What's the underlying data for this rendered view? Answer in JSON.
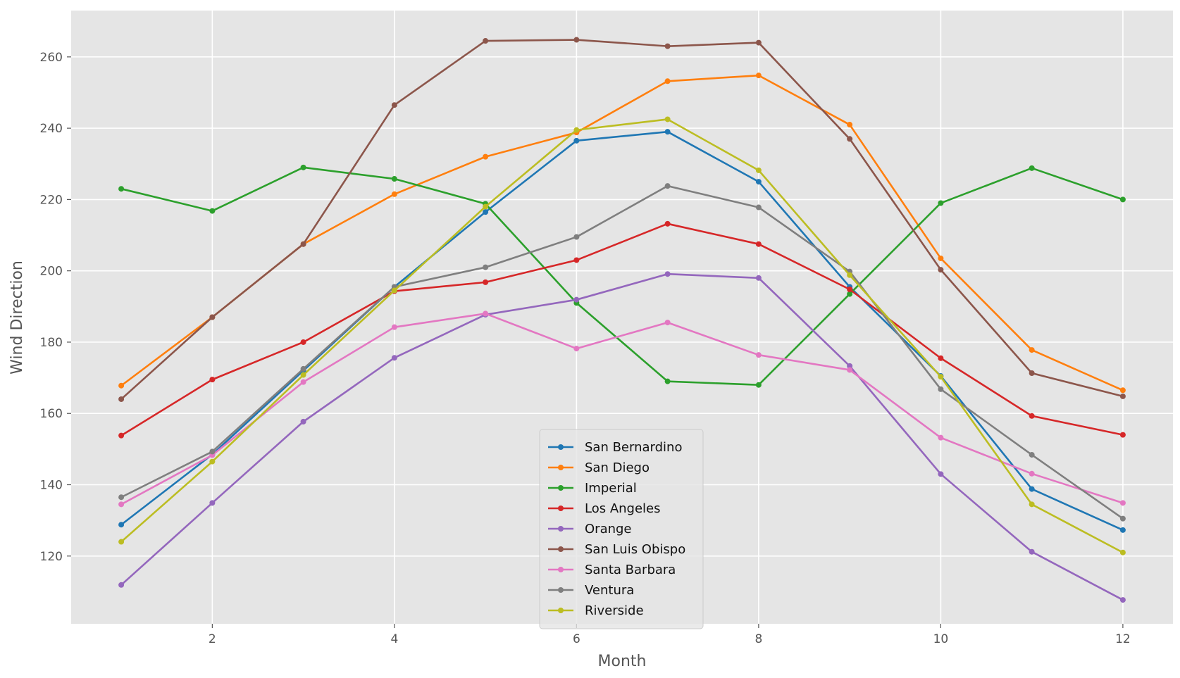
{
  "chart_data": {
    "type": "line",
    "title": "",
    "xlabel": "Month",
    "ylabel": "Wind Direction",
    "x": [
      1,
      2,
      3,
      4,
      5,
      6,
      7,
      8,
      9,
      10,
      11,
      12
    ],
    "xlim": [
      0.45,
      12.55
    ],
    "ylim": [
      101,
      273
    ],
    "xticks": [
      2,
      4,
      6,
      8,
      10,
      12
    ],
    "yticks": [
      120,
      140,
      160,
      180,
      200,
      220,
      240,
      260
    ],
    "grid": true,
    "legend_position": "lower-center",
    "series": [
      {
        "name": "San Bernardino",
        "color": "#1f77b4",
        "values": [
          128.8,
          148.5,
          172.0,
          195.5,
          216.5,
          236.5,
          239.0,
          225.0,
          195.5,
          170.5,
          138.8,
          127.3
        ]
      },
      {
        "name": "San Diego",
        "color": "#ff7f0e",
        "values": [
          167.8,
          187.0,
          207.5,
          221.5,
          232.0,
          238.8,
          253.2,
          254.8,
          241.0,
          203.5,
          177.8,
          166.5
        ]
      },
      {
        "name": "Imperial",
        "color": "#2ca02c",
        "values": [
          223.0,
          216.8,
          229.0,
          225.8,
          218.8,
          191.0,
          169.0,
          168.0,
          193.5,
          219.0,
          228.8,
          220.0
        ]
      },
      {
        "name": "Los Angeles",
        "color": "#d62728",
        "values": [
          153.8,
          169.5,
          180.0,
          194.3,
          196.8,
          203.0,
          213.2,
          207.5,
          194.8,
          175.5,
          159.3,
          154.0
        ]
      },
      {
        "name": "Orange",
        "color": "#9467bd",
        "values": [
          111.9,
          134.9,
          157.7,
          175.6,
          187.7,
          191.9,
          199.1,
          198.0,
          173.3,
          143.0,
          121.2,
          107.7
        ]
      },
      {
        "name": "San Luis Obispo",
        "color": "#8c564b",
        "values": [
          164.0,
          187.0,
          207.5,
          246.5,
          264.5,
          264.8,
          263.0,
          264.0,
          237.0,
          200.3,
          171.3,
          164.8
        ]
      },
      {
        "name": "Santa Barbara",
        "color": "#e377c2",
        "values": [
          134.5,
          148.3,
          168.8,
          184.2,
          188.0,
          178.2,
          185.5,
          176.4,
          172.2,
          153.2,
          143.1,
          134.9
        ]
      },
      {
        "name": "Ventura",
        "color": "#7f7f7f",
        "values": [
          136.5,
          149.3,
          172.5,
          195.5,
          201.0,
          209.5,
          223.8,
          217.8,
          199.8,
          166.8,
          148.4,
          130.5
        ]
      },
      {
        "name": "Riverside",
        "color": "#bcbd22",
        "values": [
          124.0,
          146.5,
          170.8,
          194.5,
          218.0,
          239.5,
          242.5,
          228.2,
          198.8,
          170.3,
          134.5,
          121.0
        ]
      }
    ]
  }
}
